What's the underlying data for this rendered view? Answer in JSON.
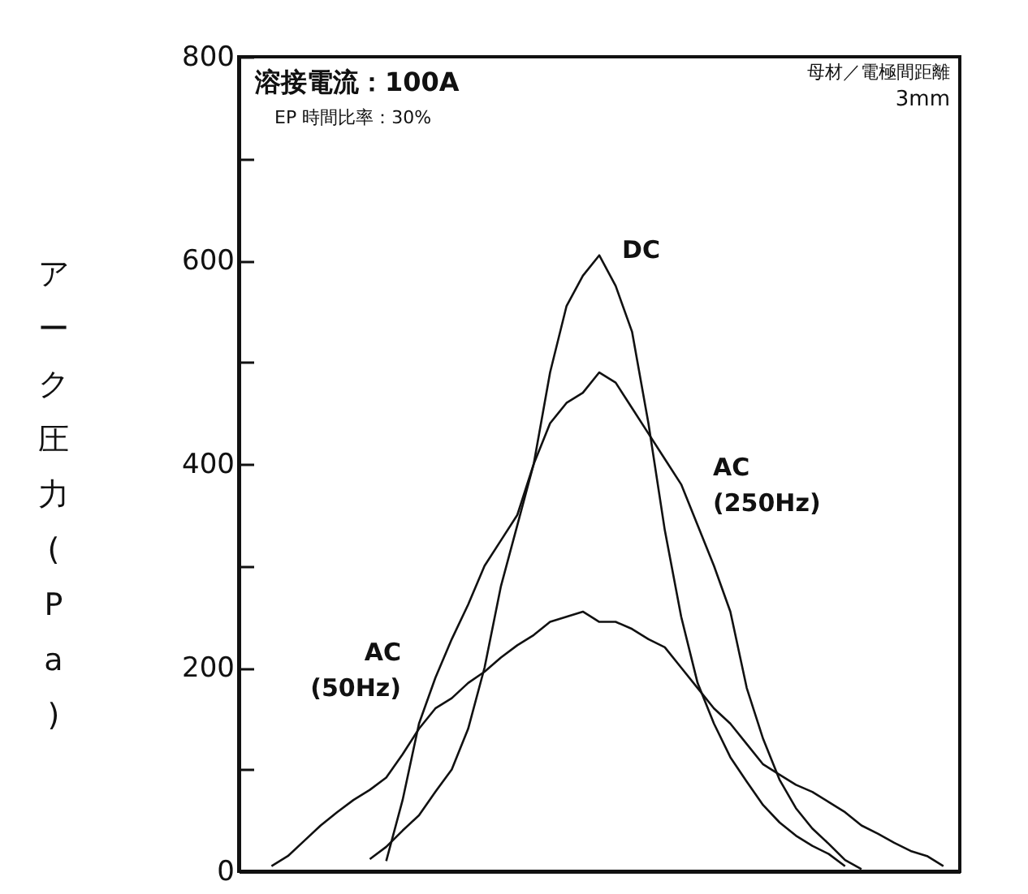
{
  "chart_data": {
    "type": "line",
    "ylabel": "アーク圧力 (Pa)",
    "categories": [
      null,
      null,
      null,
      null,
      null,
      null,
      null,
      null,
      null,
      null,
      null,
      null,
      null,
      null,
      null,
      null,
      null,
      null,
      null,
      null,
      null,
      null,
      null,
      null,
      null,
      null,
      null,
      null,
      null,
      null,
      null,
      null,
      null,
      null,
      null,
      null,
      null,
      null,
      null,
      null,
      null,
      null,
      null,
      null,
      null
    ],
    "series": [
      {
        "name": "DC",
        "color": "#111111",
        "values": [
          null,
          null,
          null,
          null,
          null,
          null,
          null,
          null,
          12,
          24,
          40,
          55,
          78,
          100,
          140,
          200,
          280,
          340,
          400,
          490,
          555,
          585,
          605,
          575,
          530,
          440,
          335,
          250,
          185,
          145,
          112,
          88,
          65,
          48,
          35,
          25,
          17,
          5,
          null,
          null,
          null,
          null,
          null,
          null,
          null
        ]
      },
      {
        "name": "AC (250Hz)",
        "color": "#111111",
        "values": [
          null,
          null,
          null,
          null,
          null,
          null,
          null,
          null,
          null,
          10,
          70,
          145,
          190,
          228,
          262,
          300,
          325,
          350,
          400,
          440,
          460,
          470,
          490,
          480,
          455,
          430,
          405,
          380,
          340,
          300,
          255,
          180,
          130,
          90,
          62,
          42,
          27,
          11,
          2,
          null,
          null,
          null,
          null,
          null,
          null
        ]
      },
      {
        "name": "AC (50Hz)",
        "color": "#111111",
        "values": [
          null,
          null,
          5,
          15,
          30,
          45,
          58,
          70,
          80,
          92,
          115,
          140,
          160,
          170,
          185,
          196,
          210,
          222,
          232,
          245,
          250,
          255,
          245,
          245,
          238,
          228,
          220,
          200,
          180,
          160,
          145,
          125,
          105,
          95,
          85,
          78,
          68,
          58,
          45,
          37,
          28,
          20,
          15,
          5,
          null
        ]
      }
    ],
    "ylim": [
      0,
      800
    ],
    "yticks": [
      0,
      {
        "value": 100,
        "label": null
      },
      200,
      {
        "value": 300,
        "label": null
      },
      400,
      {
        "value": 500,
        "label": null
      },
      600,
      {
        "value": 700,
        "label": null
      },
      800
    ],
    "tick_labels": "y",
    "annotations": [
      "溶接電流：100A",
      "EP 時間比率：30%",
      "母材／電極間距離",
      "3mm"
    ]
  }
}
